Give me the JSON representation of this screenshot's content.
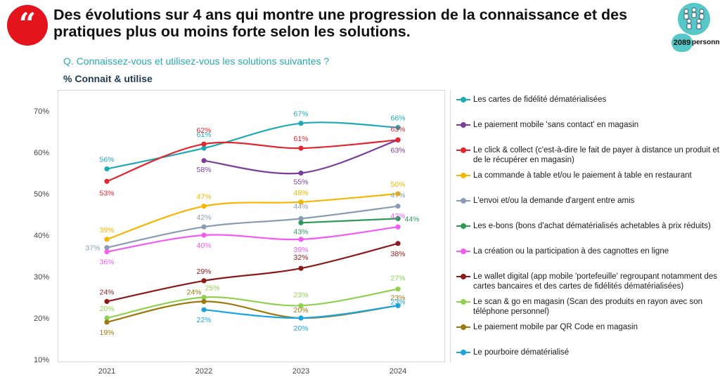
{
  "header": {
    "quote_glyph": "“",
    "title": "Des évolutions sur 4 ans qui montre une progression de la connaissance et des pratiques plus ou moins forte selon les solutions.",
    "respondents_count": "2089",
    "respondents_label": "personnes",
    "question": "Q. Connaissez-vous et utilisez-vous les solutions suivantes ?",
    "subtitle": "% Connait & utilise"
  },
  "chart_data": {
    "type": "line",
    "x": [
      "2021",
      "2022",
      "2023",
      "2024"
    ],
    "ylim": [
      10,
      70
    ],
    "yticks": [
      "10%",
      "20%",
      "30%",
      "40%",
      "50%",
      "60%",
      "70%"
    ],
    "grid": false,
    "legend_position": "right",
    "series": [
      {
        "name": "Les cartes de fidélité dématérialisées",
        "color": "#1fa9b4",
        "values": [
          56,
          61,
          67,
          66
        ],
        "labels": [
          "56%",
          "61%",
          "67%",
          "66%"
        ]
      },
      {
        "name": "Le paiement mobile 'sans contact' en magasin",
        "color": "#7b3f99",
        "values": [
          null,
          58,
          55,
          63
        ],
        "labels": [
          "",
          "58%",
          "55%",
          "63%"
        ]
      },
      {
        "name": "Le click & collect (c'est-à-dire le fait de payer à distance un produit et de le récupérer en magasin)",
        "color": "#e0262e",
        "values": [
          53,
          62,
          61,
          63
        ],
        "labels": [
          "53%",
          "62%",
          "61%",
          "63%"
        ]
      },
      {
        "name": "La commande à table et/ou le paiement à table en restaurant",
        "color": "#f7b500",
        "values": [
          39,
          47,
          48,
          50
        ],
        "labels": [
          "39%",
          "47%",
          "48%",
          "50%"
        ]
      },
      {
        "name": "L'envoi et/ou la demande d'argent entre amis",
        "color": "#8a9bb3",
        "values": [
          37,
          42,
          44,
          47
        ],
        "labels": [
          "37%",
          "42%",
          "44%",
          "47%"
        ]
      },
      {
        "name": "Les e-bons (bons d'achat dématérialisés achetables à prix réduits)",
        "color": "#2e9a5a",
        "values": [
          null,
          null,
          43,
          44
        ],
        "labels": [
          "",
          "",
          "43%",
          "44%"
        ]
      },
      {
        "name": "La création ou la participation à des cagnottes en ligne",
        "color": "#f25cf2",
        "values": [
          36,
          40,
          39,
          42
        ],
        "labels": [
          "36%",
          "40%",
          "39%",
          "42%"
        ]
      },
      {
        "name": "Le wallet digital (app mobile 'portefeuille' regroupant notamment des cartes bancaires et des cartes de fidélités dématérialisées)",
        "color": "#8b1a1a",
        "values": [
          24,
          29,
          32,
          38
        ],
        "labels": [
          "24%",
          "29%",
          "32%",
          "38%"
        ]
      },
      {
        "name": "Le scan & go en magasin (Scan des produits en rayon avec son téléphone personnel)",
        "color": "#8fd14f",
        "values": [
          20,
          25,
          23,
          27
        ],
        "labels": [
          "20%",
          "25%",
          "23%",
          "27%"
        ]
      },
      {
        "name": "Le paiement mobile par QR Code en magasin",
        "color": "#9a7a0c",
        "values": [
          19,
          24,
          20,
          23
        ],
        "labels": [
          "19%",
          "24%",
          "20%",
          "23%"
        ]
      },
      {
        "name": "Le pourboire dématérialisé",
        "color": "#1ca4e0",
        "values": [
          null,
          22,
          20,
          23
        ],
        "labels": [
          "",
          "22%",
          "20%",
          "23%"
        ]
      }
    ]
  }
}
